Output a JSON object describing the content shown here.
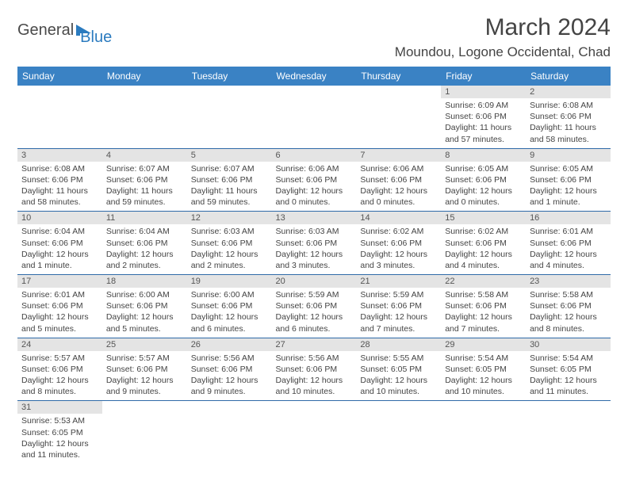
{
  "logo": {
    "text_general": "General",
    "text_blue": "Blue"
  },
  "title": "March 2024",
  "location": "Moundou, Logone Occidental, Chad",
  "colors": {
    "header_bg": "#3a82c4",
    "header_text": "#ffffff",
    "daynum_bg": "#e4e4e4",
    "row_border": "#2f6aa8",
    "logo_blue": "#2b7bbf",
    "text": "#444444"
  },
  "weekdays": [
    "Sunday",
    "Monday",
    "Tuesday",
    "Wednesday",
    "Thursday",
    "Friday",
    "Saturday"
  ],
  "weeks": [
    [
      {
        "empty": true
      },
      {
        "empty": true
      },
      {
        "empty": true
      },
      {
        "empty": true
      },
      {
        "empty": true
      },
      {
        "day": "1",
        "sunrise": "Sunrise: 6:09 AM",
        "sunset": "Sunset: 6:06 PM",
        "daylight": "Daylight: 11 hours and 57 minutes."
      },
      {
        "day": "2",
        "sunrise": "Sunrise: 6:08 AM",
        "sunset": "Sunset: 6:06 PM",
        "daylight": "Daylight: 11 hours and 58 minutes."
      }
    ],
    [
      {
        "day": "3",
        "sunrise": "Sunrise: 6:08 AM",
        "sunset": "Sunset: 6:06 PM",
        "daylight": "Daylight: 11 hours and 58 minutes."
      },
      {
        "day": "4",
        "sunrise": "Sunrise: 6:07 AM",
        "sunset": "Sunset: 6:06 PM",
        "daylight": "Daylight: 11 hours and 59 minutes."
      },
      {
        "day": "5",
        "sunrise": "Sunrise: 6:07 AM",
        "sunset": "Sunset: 6:06 PM",
        "daylight": "Daylight: 11 hours and 59 minutes."
      },
      {
        "day": "6",
        "sunrise": "Sunrise: 6:06 AM",
        "sunset": "Sunset: 6:06 PM",
        "daylight": "Daylight: 12 hours and 0 minutes."
      },
      {
        "day": "7",
        "sunrise": "Sunrise: 6:06 AM",
        "sunset": "Sunset: 6:06 PM",
        "daylight": "Daylight: 12 hours and 0 minutes."
      },
      {
        "day": "8",
        "sunrise": "Sunrise: 6:05 AM",
        "sunset": "Sunset: 6:06 PM",
        "daylight": "Daylight: 12 hours and 0 minutes."
      },
      {
        "day": "9",
        "sunrise": "Sunrise: 6:05 AM",
        "sunset": "Sunset: 6:06 PM",
        "daylight": "Daylight: 12 hours and 1 minute."
      }
    ],
    [
      {
        "day": "10",
        "sunrise": "Sunrise: 6:04 AM",
        "sunset": "Sunset: 6:06 PM",
        "daylight": "Daylight: 12 hours and 1 minute."
      },
      {
        "day": "11",
        "sunrise": "Sunrise: 6:04 AM",
        "sunset": "Sunset: 6:06 PM",
        "daylight": "Daylight: 12 hours and 2 minutes."
      },
      {
        "day": "12",
        "sunrise": "Sunrise: 6:03 AM",
        "sunset": "Sunset: 6:06 PM",
        "daylight": "Daylight: 12 hours and 2 minutes."
      },
      {
        "day": "13",
        "sunrise": "Sunrise: 6:03 AM",
        "sunset": "Sunset: 6:06 PM",
        "daylight": "Daylight: 12 hours and 3 minutes."
      },
      {
        "day": "14",
        "sunrise": "Sunrise: 6:02 AM",
        "sunset": "Sunset: 6:06 PM",
        "daylight": "Daylight: 12 hours and 3 minutes."
      },
      {
        "day": "15",
        "sunrise": "Sunrise: 6:02 AM",
        "sunset": "Sunset: 6:06 PM",
        "daylight": "Daylight: 12 hours and 4 minutes."
      },
      {
        "day": "16",
        "sunrise": "Sunrise: 6:01 AM",
        "sunset": "Sunset: 6:06 PM",
        "daylight": "Daylight: 12 hours and 4 minutes."
      }
    ],
    [
      {
        "day": "17",
        "sunrise": "Sunrise: 6:01 AM",
        "sunset": "Sunset: 6:06 PM",
        "daylight": "Daylight: 12 hours and 5 minutes."
      },
      {
        "day": "18",
        "sunrise": "Sunrise: 6:00 AM",
        "sunset": "Sunset: 6:06 PM",
        "daylight": "Daylight: 12 hours and 5 minutes."
      },
      {
        "day": "19",
        "sunrise": "Sunrise: 6:00 AM",
        "sunset": "Sunset: 6:06 PM",
        "daylight": "Daylight: 12 hours and 6 minutes."
      },
      {
        "day": "20",
        "sunrise": "Sunrise: 5:59 AM",
        "sunset": "Sunset: 6:06 PM",
        "daylight": "Daylight: 12 hours and 6 minutes."
      },
      {
        "day": "21",
        "sunrise": "Sunrise: 5:59 AM",
        "sunset": "Sunset: 6:06 PM",
        "daylight": "Daylight: 12 hours and 7 minutes."
      },
      {
        "day": "22",
        "sunrise": "Sunrise: 5:58 AM",
        "sunset": "Sunset: 6:06 PM",
        "daylight": "Daylight: 12 hours and 7 minutes."
      },
      {
        "day": "23",
        "sunrise": "Sunrise: 5:58 AM",
        "sunset": "Sunset: 6:06 PM",
        "daylight": "Daylight: 12 hours and 8 minutes."
      }
    ],
    [
      {
        "day": "24",
        "sunrise": "Sunrise: 5:57 AM",
        "sunset": "Sunset: 6:06 PM",
        "daylight": "Daylight: 12 hours and 8 minutes."
      },
      {
        "day": "25",
        "sunrise": "Sunrise: 5:57 AM",
        "sunset": "Sunset: 6:06 PM",
        "daylight": "Daylight: 12 hours and 9 minutes."
      },
      {
        "day": "26",
        "sunrise": "Sunrise: 5:56 AM",
        "sunset": "Sunset: 6:06 PM",
        "daylight": "Daylight: 12 hours and 9 minutes."
      },
      {
        "day": "27",
        "sunrise": "Sunrise: 5:56 AM",
        "sunset": "Sunset: 6:06 PM",
        "daylight": "Daylight: 12 hours and 10 minutes."
      },
      {
        "day": "28",
        "sunrise": "Sunrise: 5:55 AM",
        "sunset": "Sunset: 6:05 PM",
        "daylight": "Daylight: 12 hours and 10 minutes."
      },
      {
        "day": "29",
        "sunrise": "Sunrise: 5:54 AM",
        "sunset": "Sunset: 6:05 PM",
        "daylight": "Daylight: 12 hours and 10 minutes."
      },
      {
        "day": "30",
        "sunrise": "Sunrise: 5:54 AM",
        "sunset": "Sunset: 6:05 PM",
        "daylight": "Daylight: 12 hours and 11 minutes."
      }
    ],
    [
      {
        "day": "31",
        "sunrise": "Sunrise: 5:53 AM",
        "sunset": "Sunset: 6:05 PM",
        "daylight": "Daylight: 12 hours and 11 minutes."
      },
      {
        "empty": true
      },
      {
        "empty": true
      },
      {
        "empty": true
      },
      {
        "empty": true
      },
      {
        "empty": true
      },
      {
        "empty": true
      }
    ]
  ]
}
